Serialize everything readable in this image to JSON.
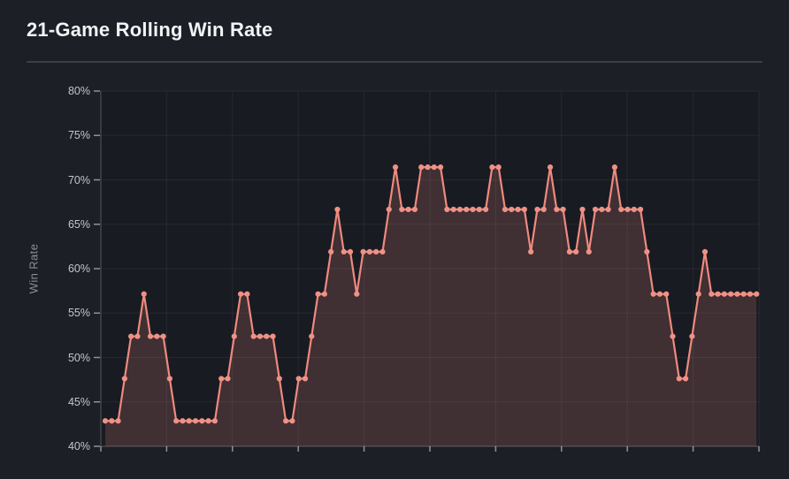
{
  "header": {
    "title": "21-Game Rolling Win Rate"
  },
  "chart_data": {
    "type": "area",
    "title": "21-Game Rolling Win Rate",
    "xlabel": "",
    "ylabel": "Win Rate",
    "ylim": [
      40,
      80
    ],
    "y_tick_labels": [
      "80%",
      "75%",
      "70%",
      "65%",
      "60%",
      "55%",
      "50%",
      "45%",
      "40%"
    ],
    "x_tick_labels": [],
    "grid": true,
    "legend": "none",
    "series_name": "21-game rolling win rate (%)",
    "values": [
      42.86,
      42.86,
      42.86,
      47.62,
      52.38,
      52.38,
      57.14,
      52.38,
      52.38,
      52.38,
      47.62,
      42.86,
      42.86,
      42.86,
      42.86,
      42.86,
      42.86,
      42.86,
      47.62,
      47.62,
      52.38,
      57.14,
      57.14,
      52.38,
      52.38,
      52.38,
      52.38,
      47.62,
      42.86,
      42.86,
      47.62,
      47.62,
      52.38,
      57.14,
      57.14,
      61.9,
      66.67,
      61.9,
      61.9,
      57.14,
      61.9,
      61.9,
      61.9,
      61.9,
      66.67,
      71.43,
      66.67,
      66.67,
      66.67,
      71.43,
      71.43,
      71.43,
      71.43,
      66.67,
      66.67,
      66.67,
      66.67,
      66.67,
      66.67,
      66.67,
      71.43,
      71.43,
      66.67,
      66.67,
      66.67,
      66.67,
      61.9,
      66.67,
      66.67,
      71.43,
      66.67,
      66.67,
      61.9,
      61.9,
      66.67,
      61.9,
      66.67,
      66.67,
      66.67,
      71.43,
      66.67,
      66.67,
      66.67,
      66.67,
      61.9,
      57.14,
      57.14,
      57.14,
      52.38,
      47.62,
      47.62,
      52.38,
      57.14,
      61.9,
      57.14,
      57.14,
      57.14,
      57.14,
      57.14,
      57.14,
      57.14,
      57.14
    ],
    "colors": {
      "line": "#ee8a7e",
      "marker": "#ef9186",
      "area_fill": "rgba(236,139,128,0.19)",
      "background": "#1d1f27",
      "plot_background": "rgba(0,0,0,0.12)",
      "gridline": "rgba(255,255,255,0.06)",
      "axis_line": "rgba(255,255,255,0.14)",
      "tick_mark": "#8f929a",
      "tick_label": "#c3c6cc",
      "axis_title": "#8b8e96",
      "title_text": "#f2f3f5",
      "divider": "#3b3f48"
    }
  }
}
